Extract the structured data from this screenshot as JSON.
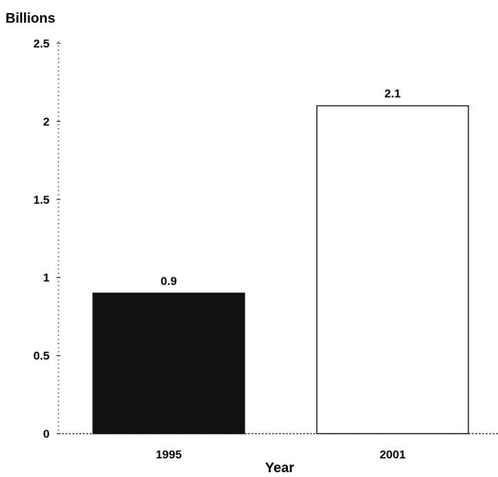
{
  "chart_data": {
    "type": "bar",
    "ylabel": "Billions",
    "xlabel": "Year",
    "categories": [
      "1995",
      "2001"
    ],
    "values": [
      0.9,
      2.1
    ],
    "data_labels": [
      "0.9",
      "2.1"
    ],
    "yticks": [
      "0",
      "0.5",
      "1",
      "1.5",
      "2",
      "2.5"
    ],
    "ylim": [
      0,
      2.5
    ],
    "bar_fill": [
      "#111111",
      "#ffffff"
    ],
    "bar_stroke": "#111111",
    "grid": false,
    "legend": "none"
  }
}
